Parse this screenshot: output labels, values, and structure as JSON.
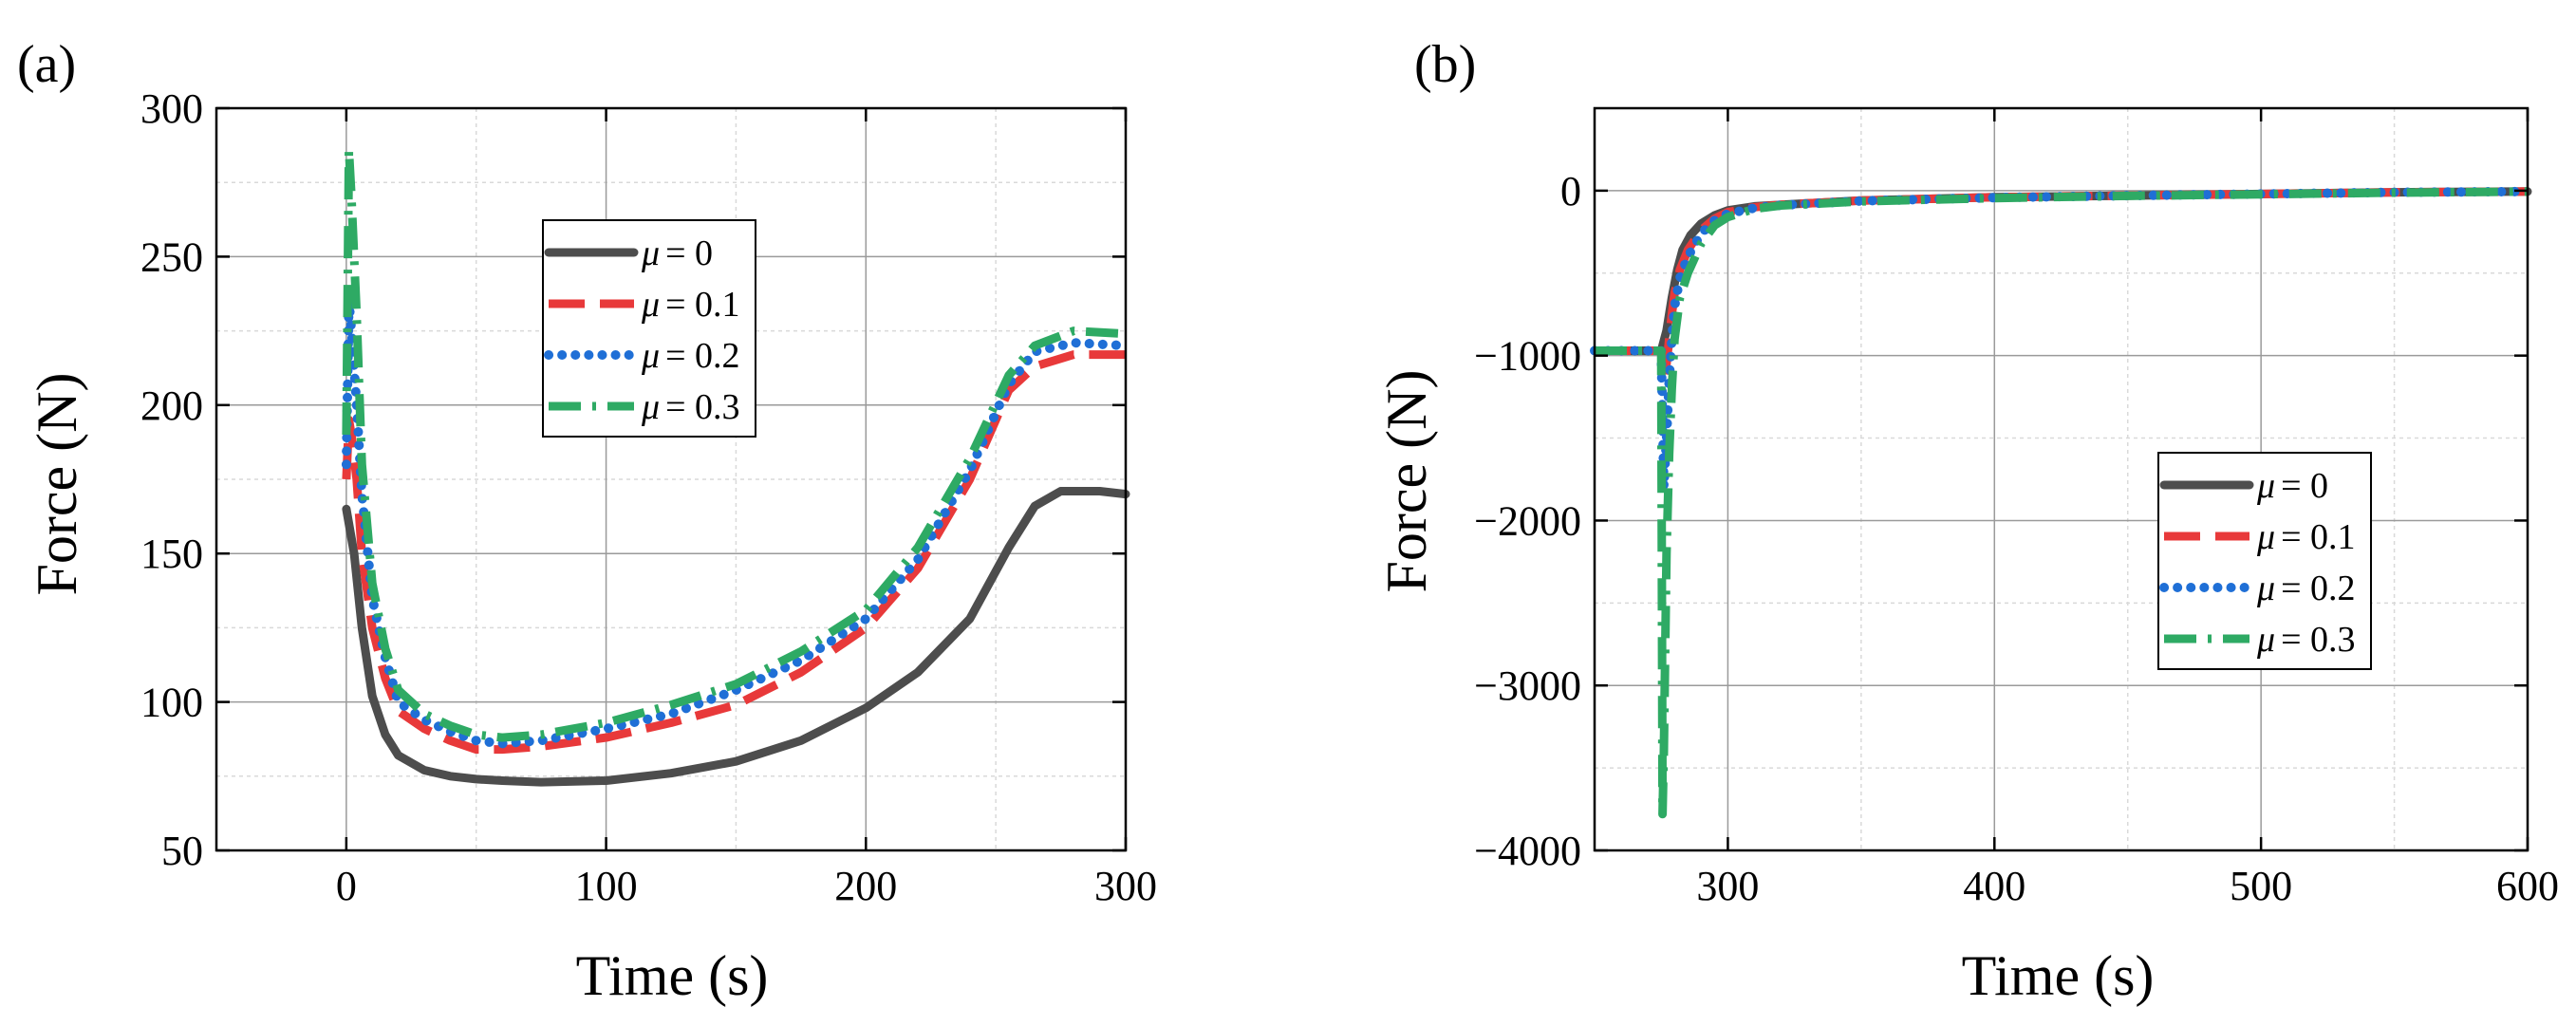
{
  "figure": {
    "panels": [
      "(a)",
      "(b)"
    ]
  },
  "colors": {
    "mu0": "#4d4d4d",
    "mu01": "#e8393a",
    "mu02": "#1f6fd6",
    "mu03": "#2eaa64",
    "grid_major": "#9a9a9a",
    "grid_minor": "#d9d9d9"
  },
  "chart_data": [
    {
      "type": "line",
      "panel": "(a)",
      "title": "",
      "xlabel": "Time (s)",
      "ylabel": "Force (N)",
      "xlim": [
        -50,
        300
      ],
      "ylim": [
        50,
        300
      ],
      "xticks": [
        0,
        100,
        200,
        300
      ],
      "yticks": [
        50,
        100,
        150,
        200,
        250,
        300
      ],
      "xtick_labels": [
        "0",
        "100",
        "200",
        "300"
      ],
      "ytick_labels": [
        "50",
        "100",
        "150",
        "200",
        "250",
        "300"
      ],
      "grid": true,
      "legend_position": "upper-center",
      "series": [
        {
          "name": "μ = 0",
          "label_mu": "μ",
          "label_value": "= 0",
          "style": "solid",
          "x": [
            0,
            3,
            6,
            10,
            15,
            20,
            30,
            40,
            50,
            60,
            75,
            100,
            125,
            150,
            175,
            200,
            220,
            240,
            255,
            265,
            275,
            290,
            300
          ],
          "y": [
            165,
            150,
            125,
            102,
            89,
            82,
            77,
            75,
            74,
            73.5,
            73,
            73.5,
            76,
            80,
            87,
            98,
            110,
            128,
            152,
            166,
            171,
            171,
            170
          ]
        },
        {
          "name": "μ = 0.1",
          "label_mu": "μ",
          "label_value": "= 0.1",
          "style": "dash",
          "x": [
            0,
            1,
            2,
            4,
            6,
            10,
            15,
            20,
            30,
            40,
            50,
            60,
            75,
            100,
            125,
            150,
            175,
            200,
            220,
            240,
            255,
            265,
            280,
            300
          ],
          "y": [
            175,
            195,
            190,
            175,
            150,
            125,
            108,
            97,
            91,
            87,
            84,
            84,
            85,
            88,
            93,
            99,
            110,
            125,
            145,
            175,
            205,
            213,
            217,
            217
          ]
        },
        {
          "name": "μ = 0.2",
          "label_mu": "μ",
          "label_value": "= 0.2",
          "style": "dot",
          "x": [
            0,
            1,
            2,
            4,
            6,
            10,
            15,
            20,
            30,
            40,
            50,
            60,
            75,
            100,
            125,
            150,
            175,
            200,
            220,
            240,
            255,
            265,
            280,
            300
          ],
          "y": [
            180,
            235,
            225,
            200,
            170,
            135,
            115,
            100,
            94,
            90,
            87,
            86,
            87,
            91,
            96,
            104,
            114,
            128,
            148,
            178,
            207,
            218,
            221,
            220
          ]
        },
        {
          "name": "μ = 0.3",
          "label_mu": "μ",
          "label_value": "= 0.3",
          "style": "dashdot",
          "x": [
            0,
            1,
            2,
            4,
            6,
            10,
            15,
            20,
            30,
            40,
            50,
            60,
            75,
            100,
            125,
            150,
            175,
            200,
            220,
            240,
            255,
            265,
            280,
            300
          ],
          "y": [
            190,
            286,
            270,
            230,
            180,
            140,
            118,
            104,
            96,
            92,
            89,
            88,
            89,
            93,
            99,
            106,
            117,
            131,
            152,
            182,
            210,
            220,
            225,
            224
          ]
        }
      ]
    },
    {
      "type": "line",
      "panel": "(b)",
      "title": "",
      "xlabel": "Time (s)",
      "ylabel": "Force (N)",
      "xlim": [
        250,
        600
      ],
      "ylim": [
        -4000,
        500
      ],
      "xticks": [
        300,
        400,
        500,
        600
      ],
      "yticks": [
        -4000,
        -3000,
        -2000,
        -1000,
        0
      ],
      "xtick_labels": [
        "300",
        "400",
        "500",
        "600"
      ],
      "ytick_labels": [
        "−4000",
        "−3000",
        "−2000",
        "−1000",
        "0"
      ],
      "grid": true,
      "legend_position": "center-right",
      "series": [
        {
          "name": "μ = 0",
          "label_mu": "μ",
          "label_value": "= 0",
          "style": "solid",
          "x": [
            250,
            270,
            275,
            277,
            279,
            281,
            283,
            286,
            290,
            295,
            300,
            310,
            320,
            350,
            400,
            450,
            500,
            550,
            600
          ],
          "y": [
            -970,
            -970,
            -970,
            -850,
            -650,
            -480,
            -360,
            -270,
            -200,
            -150,
            -120,
            -95,
            -85,
            -60,
            -40,
            -30,
            -20,
            -10,
            -5
          ]
        },
        {
          "name": "μ = 0.1",
          "label_mu": "μ",
          "label_value": "= 0.1",
          "style": "dash",
          "x": [
            250,
            270,
            275,
            276,
            277,
            278,
            279,
            280,
            282,
            285,
            290,
            295,
            300,
            310,
            320,
            350,
            400,
            450,
            500,
            550,
            600
          ],
          "y": [
            -970,
            -970,
            -970,
            -1150,
            -1050,
            -900,
            -750,
            -620,
            -480,
            -360,
            -240,
            -170,
            -130,
            -100,
            -85,
            -60,
            -40,
            -30,
            -20,
            -10,
            -5
          ]
        },
        {
          "name": "μ = 0.2",
          "label_mu": "μ",
          "label_value": "= 0.2",
          "style": "dot",
          "x": [
            250,
            270,
            275,
            276,
            277,
            278,
            279,
            280,
            282,
            285,
            290,
            295,
            300,
            310,
            320,
            350,
            400,
            450,
            500,
            550,
            600
          ],
          "y": [
            -970,
            -970,
            -970,
            -1800,
            -1500,
            -1150,
            -900,
            -700,
            -530,
            -400,
            -260,
            -180,
            -140,
            -105,
            -88,
            -62,
            -42,
            -30,
            -20,
            -10,
            -5
          ]
        },
        {
          "name": "μ = 0.3",
          "label_mu": "μ",
          "label_value": "= 0.3",
          "style": "dashdot",
          "x": [
            250,
            270,
            275,
            275.5,
            276,
            276.5,
            277,
            278,
            279,
            280,
            282,
            285,
            290,
            295,
            300,
            310,
            320,
            350,
            400,
            450,
            500,
            550,
            600
          ],
          "y": [
            -970,
            -970,
            -970,
            -3780,
            -3400,
            -2800,
            -2200,
            -1600,
            -1200,
            -900,
            -650,
            -500,
            -320,
            -210,
            -160,
            -110,
            -90,
            -65,
            -45,
            -32,
            -22,
            -12,
            -5
          ]
        }
      ]
    }
  ]
}
